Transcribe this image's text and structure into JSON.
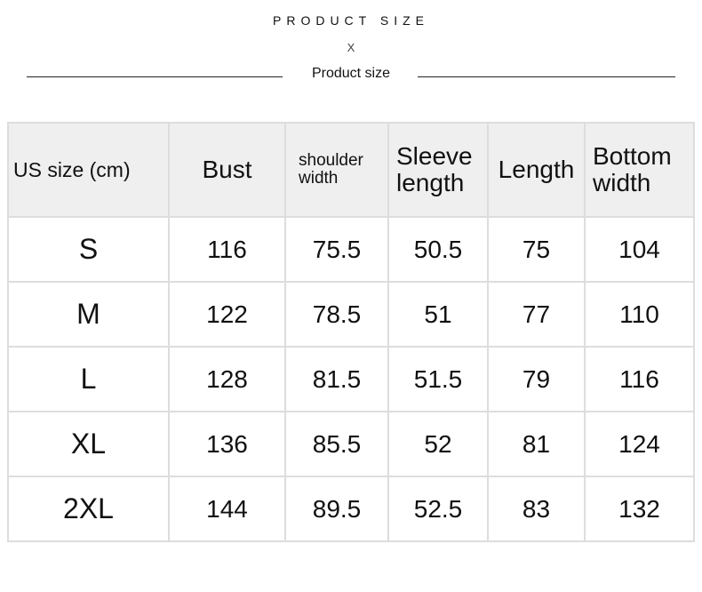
{
  "header": {
    "title": "PRODUCT SIZE",
    "separator": "X",
    "subtitle": "Product size"
  },
  "table": {
    "columns": [
      "US size (cm)",
      "Bust",
      "shoulder width",
      "Sleeve length",
      "Length",
      "Bottom width"
    ],
    "rows": [
      [
        "S",
        "116",
        "75.5",
        "50.5",
        "75",
        "104"
      ],
      [
        "M",
        "122",
        "78.5",
        "51",
        "77",
        "110"
      ],
      [
        "L",
        "128",
        "81.5",
        "51.5",
        "79",
        "116"
      ],
      [
        "XL",
        "136",
        "85.5",
        "52",
        "81",
        "124"
      ],
      [
        "2XL",
        "144",
        "89.5",
        "52.5",
        "83",
        "132"
      ]
    ]
  }
}
